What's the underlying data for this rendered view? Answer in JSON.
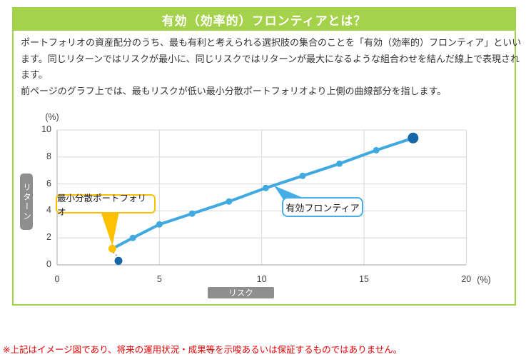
{
  "header": {
    "title": "有効（効率的）フロンティアとは？",
    "bg_color": "#a5d24b"
  },
  "body": {
    "lines": [
      "ポートフォリオの資産配分のうち、最も有利と考えられる選択肢の集合のことを「有効（効率的）フロンティア」といい",
      "ます。同じリターンではリスクが最小に、同じリスクではリターンが最大になるような組合わせを結んだ線上で表現され",
      "ます。",
      "前ページのグラフ上では、最もリスクが低い最小分散ポートフォリオより上側の曲線部分を指します。"
    ]
  },
  "chart": {
    "y_unit": "(%)",
    "x_unit": "(%)",
    "y_axis_badge": "リターン",
    "x_axis_badge": "リスク",
    "callouts": {
      "min_variance": "最小分散ポートフォリオ",
      "frontier": "有効フロンティア"
    }
  },
  "chart_data": {
    "type": "line",
    "title": "",
    "xlabel": "リスク",
    "ylabel": "リターン",
    "xlim": [
      0,
      20
    ],
    "ylim": [
      0,
      10
    ],
    "x_ticks": [
      0,
      5,
      10,
      15,
      20
    ],
    "y_ticks": [
      0,
      2,
      4,
      6,
      8,
      10
    ],
    "grid": true,
    "series": [
      {
        "name": "有効フロンティア",
        "color": "#3fa9e0",
        "points": [
          [
            2.7,
            1.2
          ],
          [
            3.7,
            2.0
          ],
          [
            5.0,
            3.0
          ],
          [
            6.6,
            3.8
          ],
          [
            8.4,
            4.7
          ],
          [
            10.2,
            5.7
          ],
          [
            12.0,
            6.6
          ],
          [
            13.8,
            7.5
          ],
          [
            15.6,
            8.5
          ],
          [
            17.4,
            9.4
          ]
        ]
      }
    ],
    "special_points": {
      "min_variance_portfolio": {
        "x": 2.7,
        "y": 1.2,
        "color": "#ffc000"
      },
      "frontier_end": {
        "x": 17.4,
        "y": 9.4,
        "color": "#1766a6"
      },
      "below_point": {
        "x": 3.0,
        "y": 0.3,
        "color": "#1766a6"
      }
    },
    "annotations": [
      "最小分散ポートフォリオ",
      "有効フロンティア"
    ]
  },
  "footnote": {
    "text": "※上記はイメージ図であり、将来の運用状況・成果等を示唆あるいは保証するものではありません。",
    "color": "#e60000"
  },
  "colors": {
    "accent_green": "#a5d24b",
    "line_blue": "#3fa9e0",
    "navy_point": "#1766a6",
    "orange_point": "#ffc000",
    "badge_gray": "#8e8e8e",
    "grid_gray": "#d9d9d9",
    "axis_gray": "#a6a6a6",
    "note_red": "#e60000"
  }
}
